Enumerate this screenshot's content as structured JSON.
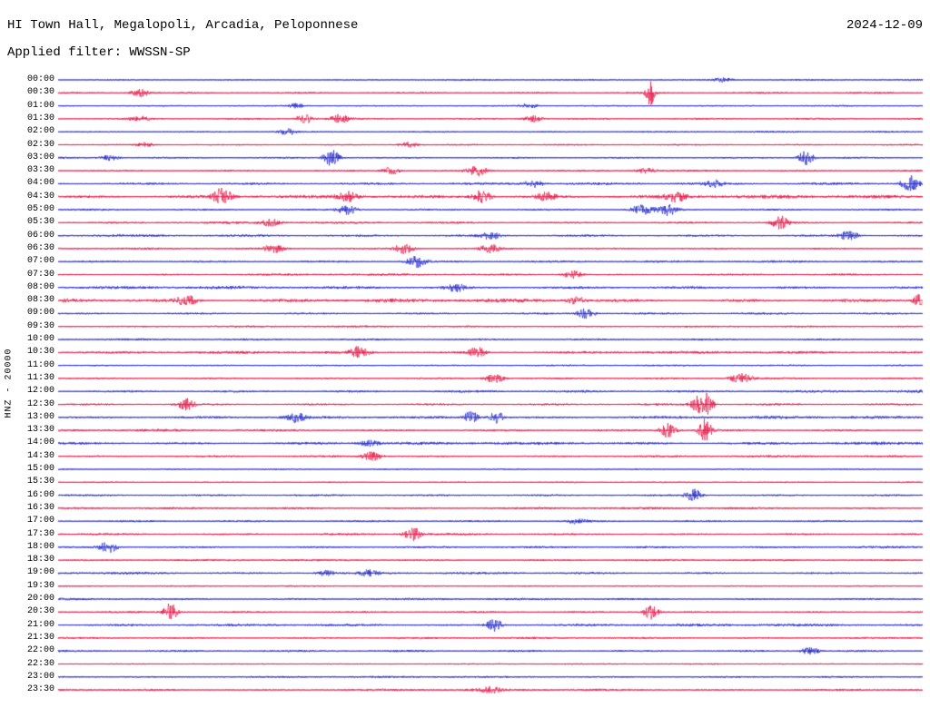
{
  "header": {
    "station": "HI Town Hall, Megalopoli, Arcadia, Peloponnese",
    "date": "2024-12-09",
    "filter": "Applied filter: WWSSN-SP"
  },
  "chart_data": {
    "type": "line",
    "subtype": "helicorder",
    "title": "HI Town Hall, Megalopoli, Arcadia, Peloponnese",
    "date": "2024-12-09",
    "filter": "WWSSN-SP",
    "scale_label": "HNZ - 20000",
    "row_interval_minutes": 30,
    "minutes_per_row": 30,
    "legend": "none",
    "grid": false,
    "colors": {
      "red": "#e41747",
      "blue": "#2428c8"
    },
    "rows": [
      {
        "time": "00:00",
        "color": "blue",
        "noise": 1.0,
        "bursts": [
          {
            "x": 0.77,
            "a": 2.5
          }
        ]
      },
      {
        "time": "00:30",
        "color": "red",
        "noise": 1.4,
        "bursts": [
          {
            "x": 0.095,
            "a": 4
          },
          {
            "x": 0.685,
            "a": 14,
            "w": 0.005
          }
        ]
      },
      {
        "time": "01:00",
        "color": "blue",
        "noise": 1.0,
        "bursts": [
          {
            "x": 0.275,
            "a": 2.5
          },
          {
            "x": 0.545,
            "a": 3
          }
        ]
      },
      {
        "time": "01:30",
        "color": "red",
        "noise": 1.4,
        "bursts": [
          {
            "x": 0.095,
            "a": 2.5
          },
          {
            "x": 0.285,
            "a": 6,
            "w": 0.009
          },
          {
            "x": 0.325,
            "a": 4.5
          },
          {
            "x": 0.55,
            "a": 4
          }
        ]
      },
      {
        "time": "02:00",
        "color": "blue",
        "noise": 1.0,
        "bursts": [
          {
            "x": 0.265,
            "a": 3.5
          }
        ]
      },
      {
        "time": "02:30",
        "color": "red",
        "noise": 1.1,
        "bursts": [
          {
            "x": 0.1,
            "a": 2.5
          },
          {
            "x": 0.405,
            "a": 3
          }
        ]
      },
      {
        "time": "03:00",
        "color": "blue",
        "noise": 1.3,
        "bursts": [
          {
            "x": 0.06,
            "a": 3
          },
          {
            "x": 0.316,
            "a": 9,
            "w": 0.01
          },
          {
            "x": 0.865,
            "a": 8,
            "w": 0.009
          }
        ]
      },
      {
        "time": "03:30",
        "color": "red",
        "noise": 1.3,
        "bursts": [
          {
            "x": 0.385,
            "a": 4
          },
          {
            "x": 0.485,
            "a": 5.5
          },
          {
            "x": 0.68,
            "a": 3
          }
        ]
      },
      {
        "time": "04:00",
        "color": "blue",
        "noise": 1.8,
        "bursts": [
          {
            "x": 0.55,
            "a": 4
          },
          {
            "x": 0.76,
            "a": 3.5
          },
          {
            "x": 0.985,
            "a": 9,
            "w": 0.009
          }
        ]
      },
      {
        "time": "04:30",
        "color": "red",
        "noise": 1.8,
        "bursts": [
          {
            "x": 0.19,
            "a": 9,
            "w": 0.01
          },
          {
            "x": 0.335,
            "a": 5
          },
          {
            "x": 0.49,
            "a": 7
          },
          {
            "x": 0.565,
            "a": 4.5
          },
          {
            "x": 0.715,
            "a": 5
          }
        ]
      },
      {
        "time": "05:00",
        "color": "blue",
        "noise": 1.5,
        "bursts": [
          {
            "x": 0.335,
            "a": 5
          },
          {
            "x": 0.675,
            "a": 6
          },
          {
            "x": 0.705,
            "a": 6
          }
        ]
      },
      {
        "time": "05:30",
        "color": "red",
        "noise": 1.4,
        "bursts": [
          {
            "x": 0.245,
            "a": 4
          },
          {
            "x": 0.835,
            "a": 8,
            "w": 0.009
          }
        ]
      },
      {
        "time": "06:00",
        "color": "blue",
        "noise": 1.7,
        "bursts": [
          {
            "x": 0.5,
            "a": 4
          },
          {
            "x": 0.915,
            "a": 5
          }
        ]
      },
      {
        "time": "06:30",
        "color": "red",
        "noise": 1.3,
        "bursts": [
          {
            "x": 0.25,
            "a": 4.5
          },
          {
            "x": 0.4,
            "a": 5.5
          },
          {
            "x": 0.5,
            "a": 4.5
          }
        ]
      },
      {
        "time": "07:00",
        "color": "blue",
        "noise": 1.5,
        "bursts": [
          {
            "x": 0.415,
            "a": 6,
            "w": 0.012
          }
        ]
      },
      {
        "time": "07:30",
        "color": "red",
        "noise": 1.1,
        "bursts": [
          {
            "x": 0.595,
            "a": 4.5
          }
        ]
      },
      {
        "time": "08:00",
        "color": "blue",
        "noise": 1.9,
        "bursts": [
          {
            "x": 0.46,
            "a": 4
          }
        ]
      },
      {
        "time": "08:30",
        "color": "red",
        "noise": 2.0,
        "bursts": [
          {
            "x": 0.148,
            "a": 7,
            "w": 0.01
          },
          {
            "x": 0.6,
            "a": 4
          },
          {
            "x": 0.995,
            "a": 6,
            "w": 0.006
          }
        ]
      },
      {
        "time": "09:00",
        "color": "blue",
        "noise": 1.5,
        "bursts": [
          {
            "x": 0.61,
            "a": 6,
            "w": 0.01
          }
        ]
      },
      {
        "time": "09:30",
        "color": "red",
        "noise": 1.0,
        "bursts": []
      },
      {
        "time": "10:00",
        "color": "blue",
        "noise": 1.6,
        "bursts": []
      },
      {
        "time": "10:30",
        "color": "red",
        "noise": 1.4,
        "bursts": [
          {
            "x": 0.348,
            "a": 6,
            "w": 0.01
          },
          {
            "x": 0.484,
            "a": 6,
            "w": 0.01
          }
        ]
      },
      {
        "time": "11:00",
        "color": "blue",
        "noise": 1.1,
        "bursts": []
      },
      {
        "time": "11:30",
        "color": "red",
        "noise": 1.4,
        "bursts": [
          {
            "x": 0.505,
            "a": 5
          },
          {
            "x": 0.79,
            "a": 6,
            "w": 0.012
          }
        ]
      },
      {
        "time": "12:00",
        "color": "blue",
        "noise": 1.7,
        "bursts": []
      },
      {
        "time": "12:30",
        "color": "red",
        "noise": 1.6,
        "bursts": [
          {
            "x": 0.148,
            "a": 6,
            "w": 0.01
          },
          {
            "x": 0.74,
            "a": 9,
            "w": 0.008
          },
          {
            "x": 0.752,
            "a": 12,
            "w": 0.006
          }
        ]
      },
      {
        "time": "13:00",
        "color": "blue",
        "noise": 1.5,
        "bursts": [
          {
            "x": 0.275,
            "a": 5
          },
          {
            "x": 0.478,
            "a": 7,
            "w": 0.008
          },
          {
            "x": 0.507,
            "a": 7,
            "w": 0.008
          }
        ]
      },
      {
        "time": "13:30",
        "color": "red",
        "noise": 1.5,
        "bursts": [
          {
            "x": 0.705,
            "a": 8,
            "w": 0.009
          },
          {
            "x": 0.748,
            "a": 13,
            "w": 0.007
          }
        ]
      },
      {
        "time": "14:00",
        "color": "blue",
        "noise": 1.6,
        "bursts": [
          {
            "x": 0.36,
            "a": 3
          }
        ]
      },
      {
        "time": "14:30",
        "color": "red",
        "noise": 1.2,
        "bursts": [
          {
            "x": 0.363,
            "a": 5
          }
        ]
      },
      {
        "time": "15:00",
        "color": "blue",
        "noise": 1.0,
        "bursts": []
      },
      {
        "time": "15:30",
        "color": "red",
        "noise": 1.0,
        "bursts": []
      },
      {
        "time": "16:00",
        "color": "blue",
        "noise": 1.4,
        "bursts": [
          {
            "x": 0.735,
            "a": 7,
            "w": 0.009
          }
        ]
      },
      {
        "time": "16:30",
        "color": "red",
        "noise": 1.1,
        "bursts": []
      },
      {
        "time": "17:00",
        "color": "blue",
        "noise": 1.5,
        "bursts": [
          {
            "x": 0.6,
            "a": 3
          }
        ]
      },
      {
        "time": "17:30",
        "color": "red",
        "noise": 1.3,
        "bursts": [
          {
            "x": 0.41,
            "a": 8,
            "w": 0.009
          }
        ]
      },
      {
        "time": "18:00",
        "color": "blue",
        "noise": 1.4,
        "bursts": [
          {
            "x": 0.058,
            "a": 7,
            "w": 0.009
          }
        ]
      },
      {
        "time": "18:30",
        "color": "red",
        "noise": 1.0,
        "bursts": []
      },
      {
        "time": "19:00",
        "color": "blue",
        "noise": 1.3,
        "bursts": [
          {
            "x": 0.31,
            "a": 3
          },
          {
            "x": 0.36,
            "a": 3
          }
        ]
      },
      {
        "time": "19:30",
        "color": "red",
        "noise": 1.0,
        "bursts": []
      },
      {
        "time": "20:00",
        "color": "blue",
        "noise": 1.1,
        "bursts": []
      },
      {
        "time": "20:30",
        "color": "red",
        "noise": 1.3,
        "bursts": [
          {
            "x": 0.13,
            "a": 10,
            "w": 0.008
          },
          {
            "x": 0.685,
            "a": 8,
            "w": 0.009
          }
        ]
      },
      {
        "time": "21:00",
        "color": "blue",
        "noise": 1.3,
        "bursts": [
          {
            "x": 0.505,
            "a": 7,
            "w": 0.009
          }
        ]
      },
      {
        "time": "21:30",
        "color": "red",
        "noise": 1.0,
        "bursts": []
      },
      {
        "time": "22:00",
        "color": "blue",
        "noise": 1.5,
        "bursts": [
          {
            "x": 0.87,
            "a": 4
          }
        ]
      },
      {
        "time": "22:30",
        "color": "red",
        "noise": 0.9,
        "bursts": []
      },
      {
        "time": "23:00",
        "color": "blue",
        "noise": 1.0,
        "bursts": []
      },
      {
        "time": "23:30",
        "color": "red",
        "noise": 1.2,
        "bursts": [
          {
            "x": 0.5,
            "a": 3
          }
        ]
      }
    ]
  }
}
